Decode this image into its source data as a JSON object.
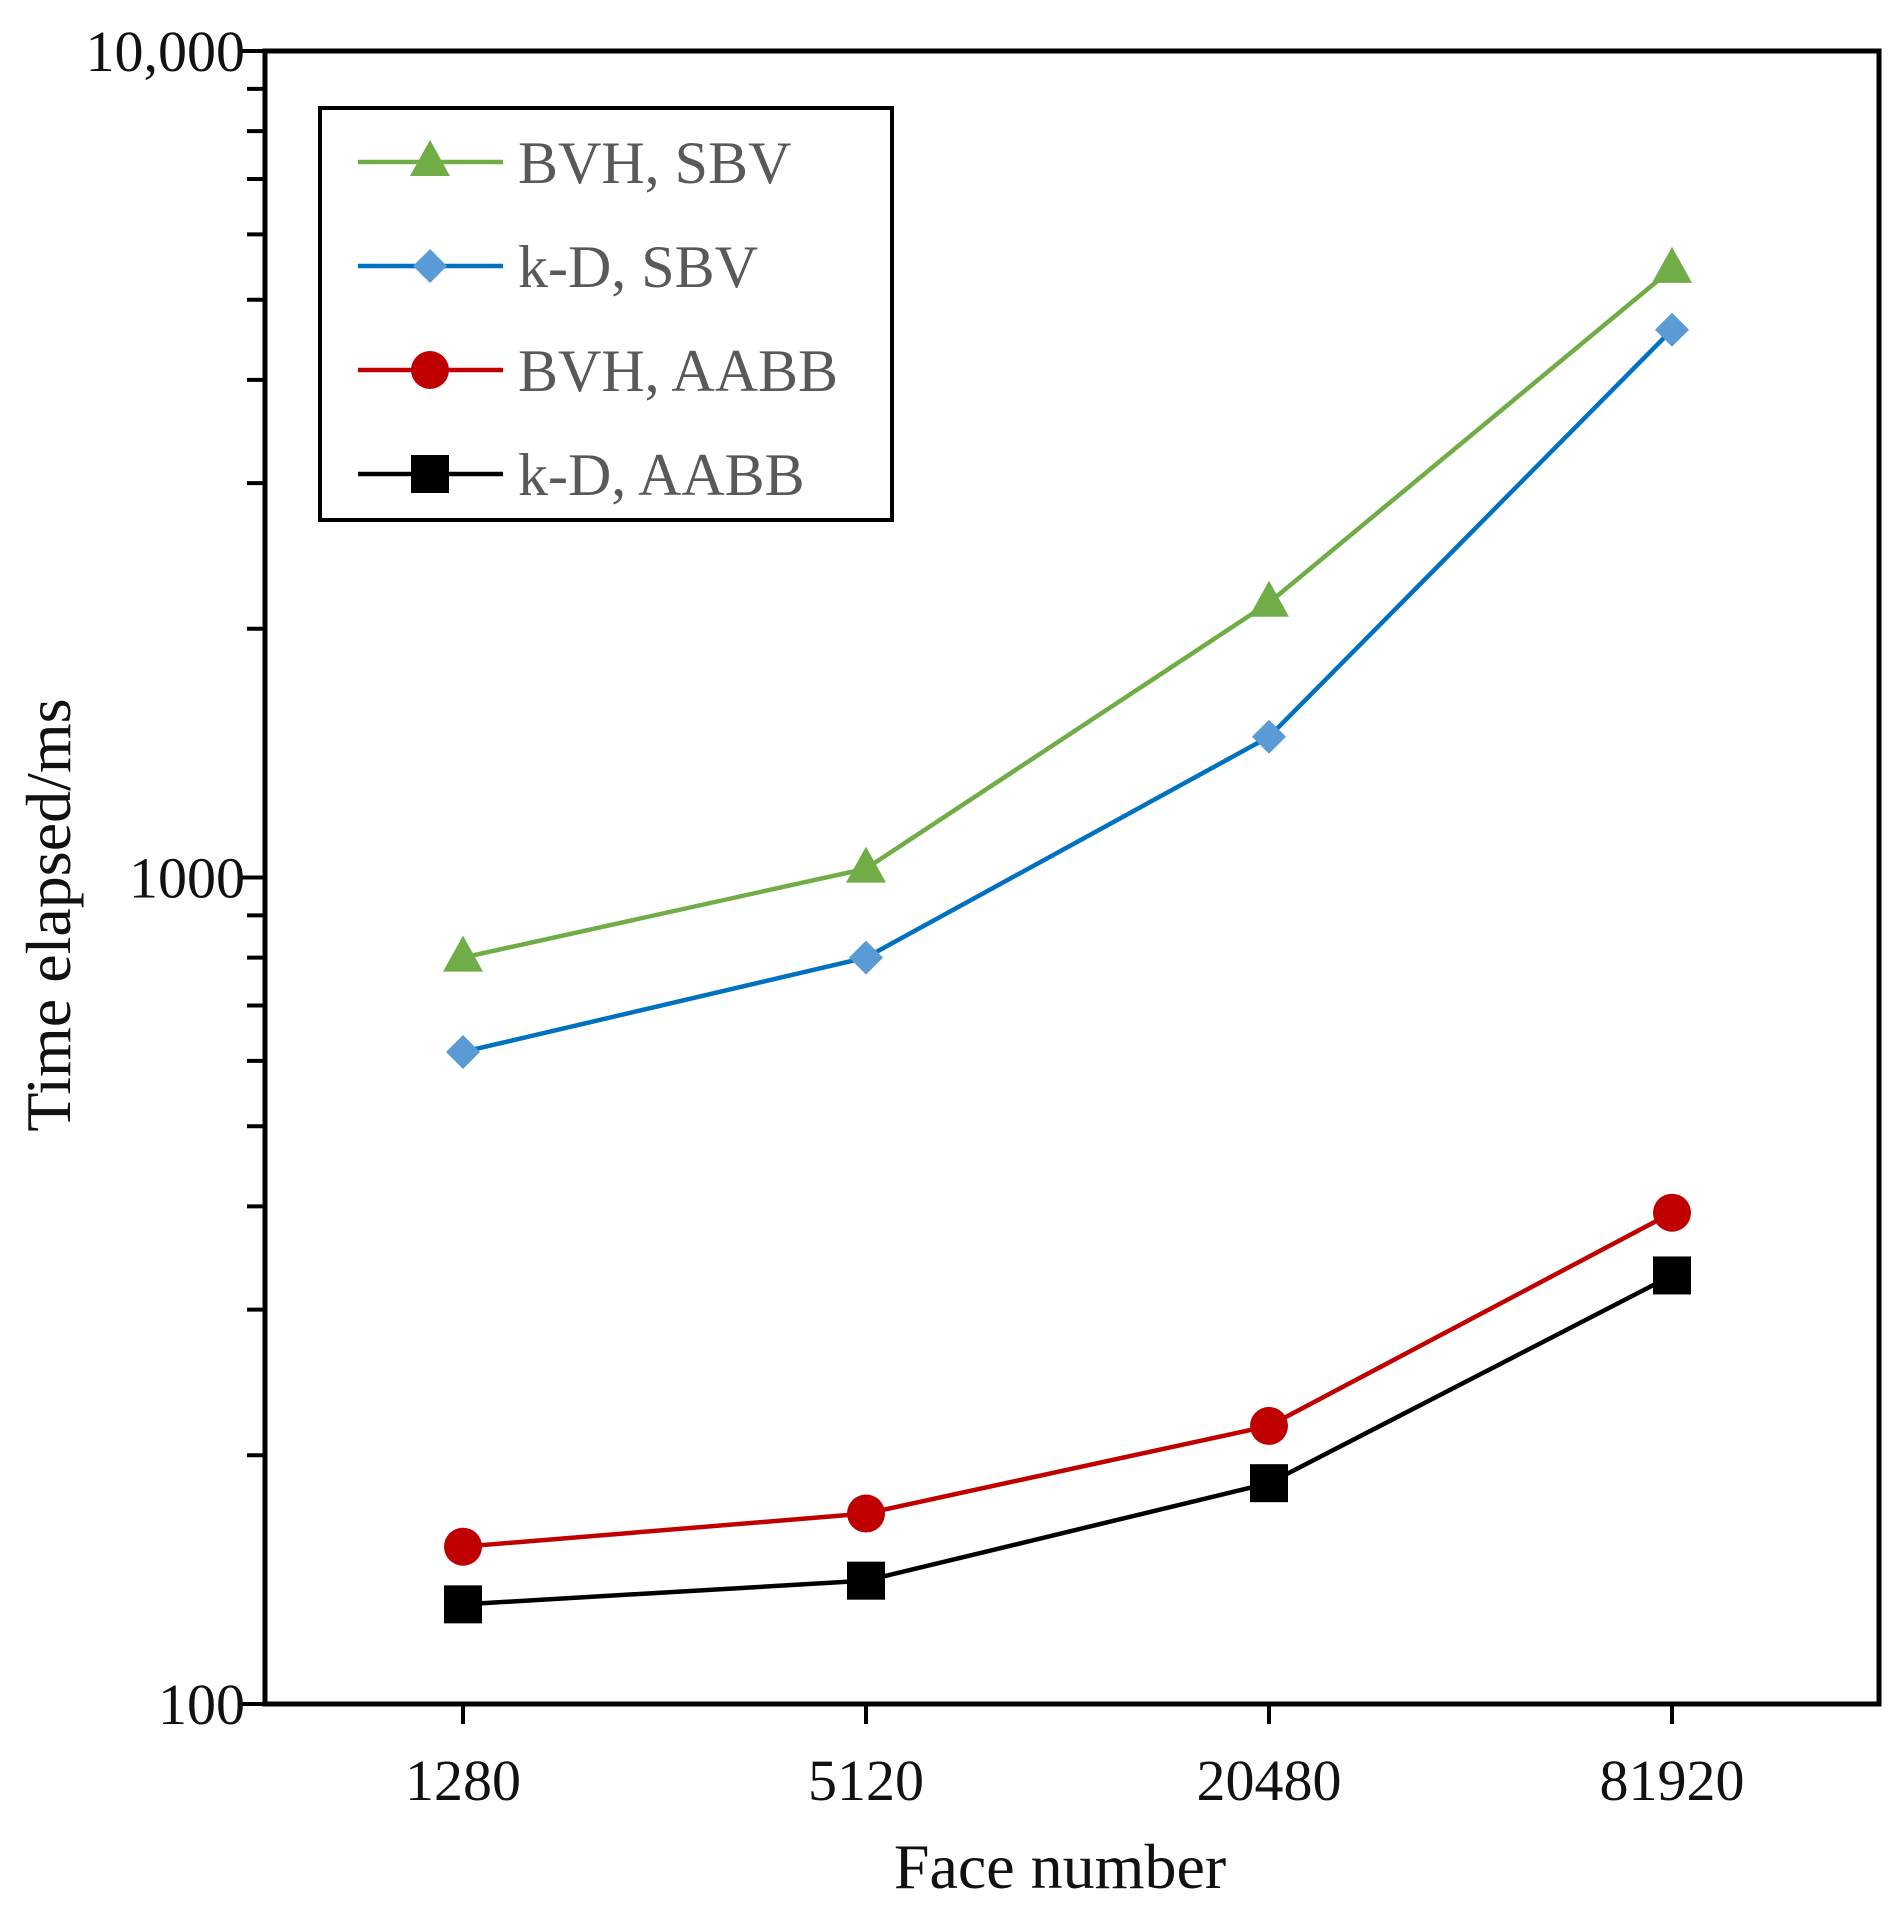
{
  "chart_data": {
    "type": "line",
    "title": "",
    "xlabel": "Face number",
    "ylabel": "Time elapsed/ms",
    "yscale": "log",
    "ylim": [
      100,
      10000
    ],
    "categories": [
      "1280",
      "5120",
      "20480",
      "81920"
    ],
    "y_tick_labels": [
      "100",
      "1000",
      "10,000"
    ],
    "y_tick_values": [
      100,
      1000,
      10000
    ],
    "legend_position": "top-left",
    "grid": false,
    "series": [
      {
        "name": "BVH, SBV",
        "color": "#70ad47",
        "marker": "triangle",
        "values": [
          800,
          1025,
          2150,
          5450
        ]
      },
      {
        "name": "k-D, SBV",
        "color": "#0070c0",
        "marker_color": "#5b9bd5",
        "marker": "diamond",
        "values": [
          615,
          800,
          1480,
          4600
        ]
      },
      {
        "name": "BVH, AABB",
        "color": "#c00000",
        "marker": "circle",
        "values": [
          155,
          170,
          217,
          393
        ]
      },
      {
        "name": "k-D, AABB",
        "color": "#000000",
        "marker": "square",
        "values": [
          132,
          141,
          185,
          330
        ]
      }
    ]
  }
}
